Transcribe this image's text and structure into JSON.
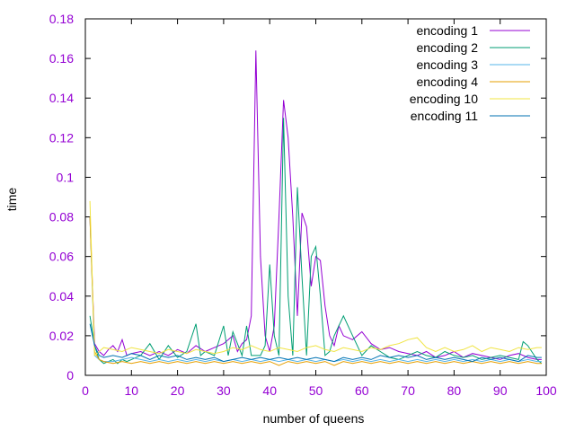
{
  "chart_data": {
    "type": "line",
    "title": "",
    "xlabel": "number of queens",
    "ylabel": "time",
    "xlim": [
      0,
      100
    ],
    "ylim": [
      0,
      0.18
    ],
    "xticks": [
      0,
      10,
      20,
      30,
      40,
      50,
      60,
      70,
      80,
      90,
      100
    ],
    "yticks": [
      0,
      0.02,
      0.04,
      0.06,
      0.08,
      0.1,
      0.12,
      0.14,
      0.16,
      0.18
    ],
    "xtick_labels": [
      "0",
      "10",
      "20",
      "30",
      "40",
      "50",
      "60",
      "70",
      "80",
      "90",
      "100"
    ],
    "ytick_labels": [
      "0",
      "0.02",
      "0.04",
      "0.06",
      "0.08",
      "0.1",
      "0.12",
      "0.14",
      "0.16",
      "0.18"
    ],
    "tick_label_color": "#9400d3",
    "grid": false,
    "legend_position": "top-right",
    "series": [
      {
        "name": "encoding 1",
        "color": "#9400d3",
        "x": [
          1,
          2,
          3,
          4,
          5,
          6,
          7,
          8,
          9,
          10,
          12,
          14,
          16,
          18,
          20,
          22,
          24,
          26,
          28,
          30,
          32,
          33,
          34,
          35,
          36,
          37,
          38,
          39,
          40,
          41,
          42,
          43,
          44,
          45,
          46,
          47,
          48,
          49,
          50,
          51,
          52,
          53,
          54,
          55,
          56,
          58,
          60,
          62,
          64,
          66,
          68,
          70,
          72,
          74,
          76,
          78,
          80,
          82,
          84,
          86,
          88,
          90,
          92,
          94,
          96,
          98,
          99
        ],
        "y": [
          0.08,
          0.016,
          0.012,
          0.01,
          0.013,
          0.015,
          0.012,
          0.018,
          0.01,
          0.011,
          0.012,
          0.01,
          0.012,
          0.01,
          0.013,
          0.011,
          0.015,
          0.012,
          0.014,
          0.016,
          0.02,
          0.012,
          0.016,
          0.018,
          0.03,
          0.164,
          0.06,
          0.02,
          0.012,
          0.025,
          0.08,
          0.139,
          0.12,
          0.08,
          0.03,
          0.082,
          0.075,
          0.045,
          0.06,
          0.058,
          0.035,
          0.02,
          0.015,
          0.025,
          0.02,
          0.018,
          0.022,
          0.016,
          0.013,
          0.014,
          0.012,
          0.011,
          0.01,
          0.012,
          0.009,
          0.01,
          0.012,
          0.009,
          0.011,
          0.01,
          0.009,
          0.008,
          0.01,
          0.011,
          0.009,
          0.008,
          0.008
        ]
      },
      {
        "name": "encoding 2",
        "color": "#009e73",
        "x": [
          1,
          2,
          3,
          4,
          5,
          6,
          7,
          8,
          9,
          10,
          12,
          14,
          16,
          18,
          20,
          22,
          24,
          25,
          26,
          28,
          30,
          31,
          32,
          34,
          35,
          36,
          38,
          39,
          40,
          41,
          42,
          43,
          44,
          45,
          46,
          47,
          48,
          49,
          50,
          51,
          52,
          53,
          54,
          56,
          58,
          60,
          62,
          64,
          66,
          68,
          70,
          72,
          74,
          76,
          78,
          80,
          82,
          84,
          86,
          88,
          90,
          92,
          94,
          95,
          96,
          98,
          99
        ],
        "y": [
          0.03,
          0.015,
          0.008,
          0.006,
          0.007,
          0.008,
          0.006,
          0.008,
          0.007,
          0.008,
          0.01,
          0.016,
          0.008,
          0.015,
          0.009,
          0.012,
          0.026,
          0.01,
          0.012,
          0.01,
          0.025,
          0.01,
          0.022,
          0.01,
          0.025,
          0.01,
          0.01,
          0.015,
          0.056,
          0.02,
          0.01,
          0.13,
          0.04,
          0.01,
          0.095,
          0.05,
          0.01,
          0.06,
          0.065,
          0.04,
          0.01,
          0.012,
          0.02,
          0.03,
          0.02,
          0.01,
          0.015,
          0.012,
          0.009,
          0.008,
          0.01,
          0.012,
          0.01,
          0.009,
          0.012,
          0.01,
          0.009,
          0.01,
          0.008,
          0.009,
          0.01,
          0.009,
          0.008,
          0.017,
          0.015,
          0.008,
          0.006
        ]
      },
      {
        "name": "encoding 3",
        "color": "#56b4e9",
        "x": [
          1,
          2,
          3,
          4,
          6,
          8,
          10,
          12,
          14,
          16,
          18,
          20,
          22,
          24,
          26,
          28,
          30,
          32,
          34,
          36,
          38,
          40,
          42,
          44,
          46,
          48,
          50,
          52,
          54,
          56,
          58,
          60,
          62,
          64,
          66,
          68,
          70,
          72,
          74,
          76,
          78,
          80,
          82,
          84,
          86,
          88,
          90,
          92,
          94,
          96,
          98,
          99
        ],
        "y": [
          0.08,
          0.01,
          0.008,
          0.007,
          0.007,
          0.008,
          0.009,
          0.008,
          0.007,
          0.008,
          0.007,
          0.008,
          0.007,
          0.008,
          0.007,
          0.008,
          0.007,
          0.008,
          0.007,
          0.008,
          0.007,
          0.008,
          0.007,
          0.008,
          0.007,
          0.008,
          0.007,
          0.008,
          0.007,
          0.008,
          0.007,
          0.008,
          0.007,
          0.008,
          0.007,
          0.008,
          0.007,
          0.008,
          0.007,
          0.008,
          0.007,
          0.008,
          0.007,
          0.008,
          0.007,
          0.008,
          0.007,
          0.008,
          0.007,
          0.008,
          0.007,
          0.007
        ]
      },
      {
        "name": "encoding 4",
        "color": "#e69f00",
        "x": [
          1,
          2,
          3,
          4,
          6,
          8,
          10,
          12,
          14,
          16,
          18,
          20,
          22,
          24,
          26,
          28,
          30,
          32,
          34,
          36,
          38,
          40,
          42,
          44,
          46,
          48,
          50,
          52,
          54,
          56,
          58,
          60,
          62,
          64,
          66,
          68,
          70,
          72,
          74,
          76,
          78,
          80,
          82,
          84,
          86,
          88,
          90,
          92,
          94,
          96,
          98,
          99
        ],
        "y": [
          0.08,
          0.012,
          0.008,
          0.007,
          0.006,
          0.007,
          0.006,
          0.007,
          0.006,
          0.007,
          0.006,
          0.007,
          0.006,
          0.007,
          0.006,
          0.007,
          0.006,
          0.007,
          0.006,
          0.007,
          0.006,
          0.007,
          0.005,
          0.007,
          0.006,
          0.007,
          0.006,
          0.007,
          0.005,
          0.007,
          0.006,
          0.007,
          0.006,
          0.007,
          0.006,
          0.007,
          0.006,
          0.007,
          0.006,
          0.007,
          0.006,
          0.007,
          0.006,
          0.007,
          0.006,
          0.007,
          0.006,
          0.007,
          0.006,
          0.007,
          0.006,
          0.006
        ]
      },
      {
        "name": "encoding 10",
        "color": "#f0e442",
        "x": [
          1,
          2,
          3,
          4,
          6,
          8,
          10,
          12,
          14,
          16,
          18,
          20,
          22,
          24,
          26,
          28,
          30,
          32,
          34,
          36,
          38,
          40,
          42,
          44,
          46,
          48,
          50,
          52,
          54,
          56,
          58,
          60,
          62,
          64,
          66,
          68,
          70,
          72,
          74,
          76,
          78,
          80,
          82,
          84,
          86,
          88,
          90,
          92,
          94,
          96,
          98,
          99
        ],
        "y": [
          0.088,
          0.01,
          0.012,
          0.014,
          0.013,
          0.012,
          0.014,
          0.013,
          0.012,
          0.011,
          0.013,
          0.012,
          0.011,
          0.013,
          0.012,
          0.011,
          0.012,
          0.014,
          0.013,
          0.015,
          0.013,
          0.012,
          0.014,
          0.013,
          0.012,
          0.014,
          0.015,
          0.013,
          0.012,
          0.014,
          0.013,
          0.012,
          0.014,
          0.013,
          0.015,
          0.016,
          0.018,
          0.019,
          0.014,
          0.012,
          0.014,
          0.012,
          0.013,
          0.015,
          0.012,
          0.014,
          0.013,
          0.012,
          0.014,
          0.013,
          0.014,
          0.014
        ]
      },
      {
        "name": "encoding 11",
        "color": "#0072b2",
        "x": [
          1,
          2,
          3,
          4,
          6,
          8,
          10,
          12,
          14,
          16,
          18,
          20,
          22,
          24,
          26,
          28,
          30,
          32,
          34,
          36,
          38,
          40,
          42,
          44,
          46,
          48,
          50,
          52,
          54,
          56,
          58,
          60,
          62,
          64,
          66,
          68,
          70,
          72,
          74,
          76,
          78,
          80,
          82,
          84,
          86,
          88,
          90,
          92,
          94,
          96,
          98,
          99
        ],
        "y": [
          0.026,
          0.015,
          0.01,
          0.009,
          0.01,
          0.009,
          0.011,
          0.01,
          0.008,
          0.01,
          0.009,
          0.01,
          0.008,
          0.009,
          0.008,
          0.009,
          0.007,
          0.008,
          0.009,
          0.008,
          0.009,
          0.008,
          0.009,
          0.008,
          0.009,
          0.008,
          0.009,
          0.008,
          0.007,
          0.009,
          0.008,
          0.009,
          0.008,
          0.01,
          0.009,
          0.01,
          0.009,
          0.01,
          0.008,
          0.009,
          0.008,
          0.009,
          0.008,
          0.007,
          0.009,
          0.008,
          0.009,
          0.008,
          0.007,
          0.01,
          0.009,
          0.009
        ]
      }
    ]
  }
}
